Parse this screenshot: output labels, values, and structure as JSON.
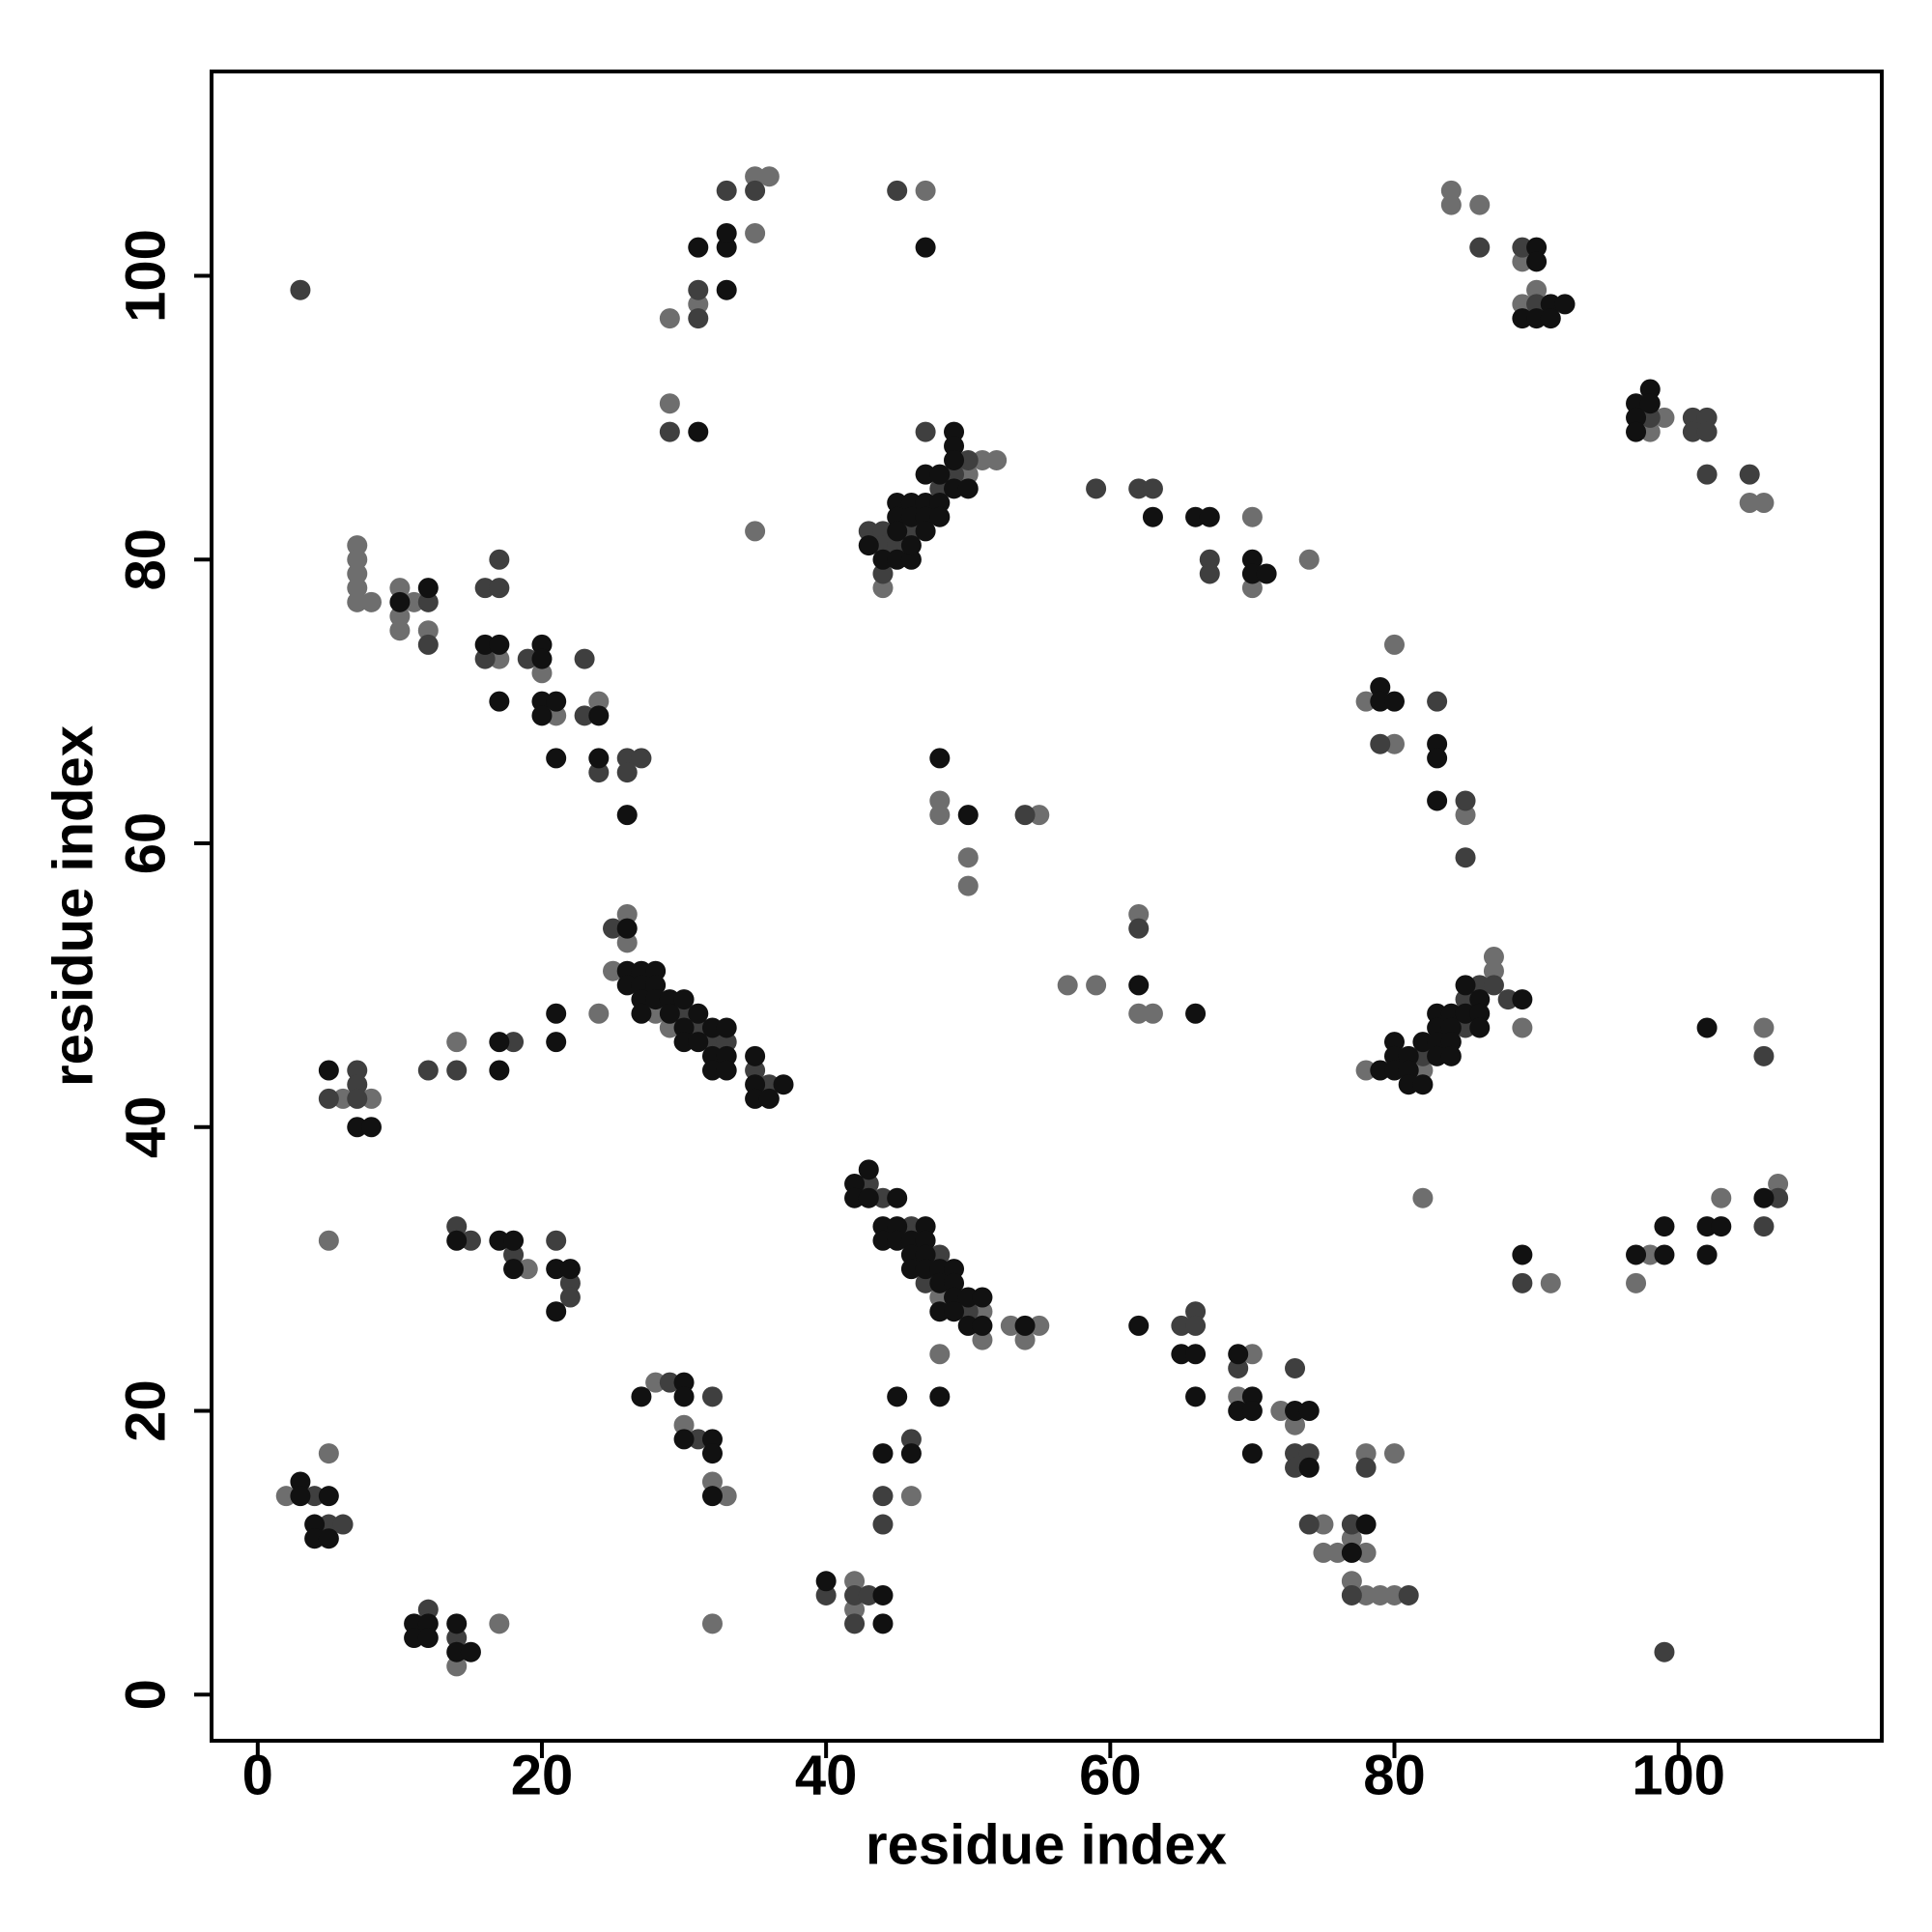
{
  "chart_data": {
    "type": "scatter",
    "x_label": "residue index",
    "y_label": "residue index",
    "xlim": [
      -3.25,
      114.3
    ],
    "ylim": [
      -3.25,
      114.4
    ],
    "xticks": [
      0,
      20,
      40,
      60,
      80,
      100
    ],
    "yticks": [
      0,
      20,
      40,
      60,
      80,
      100
    ],
    "series": [
      {
        "color": "#6e6e6e",
        "x": [
          29,
          29,
          31,
          35,
          35,
          36,
          35,
          47,
          84,
          84,
          86,
          89,
          89,
          90,
          98,
          99,
          105,
          106,
          44,
          50,
          51,
          52,
          70,
          70,
          74,
          7,
          7,
          7,
          7,
          7,
          8,
          10,
          10,
          10,
          11,
          12,
          17,
          20,
          21,
          24,
          48,
          48,
          50,
          50,
          55,
          78,
          80,
          80,
          85,
          26,
          26,
          25,
          24,
          28,
          29,
          6,
          8,
          14,
          57,
          59,
          62,
          62,
          63,
          78,
          82,
          87,
          87,
          89,
          106,
          5,
          19,
          48,
          51,
          51,
          53,
          54,
          55,
          48,
          69,
          70,
          72,
          73,
          75,
          75,
          76,
          77,
          77,
          78,
          78,
          78,
          79,
          80,
          80,
          28,
          30,
          32,
          33,
          32,
          46,
          42,
          42,
          2,
          5,
          14,
          17,
          82,
          91,
          97,
          98,
          103,
          107
        ],
        "values": [
          97,
          91,
          98,
          103,
          107,
          107,
          82,
          106,
          106,
          105,
          105,
          101,
          98,
          99,
          89,
          90,
          84,
          84,
          78,
          86,
          87,
          87,
          83,
          78,
          80,
          81,
          80,
          79,
          78,
          77,
          77,
          78,
          76,
          75,
          77,
          75,
          73,
          72,
          69,
          70,
          63,
          62,
          59,
          57,
          62,
          70,
          74,
          67,
          62,
          55,
          53,
          51,
          48,
          48,
          47,
          42,
          42,
          46,
          50,
          50,
          55,
          48,
          48,
          44,
          44,
          52,
          51,
          47,
          47,
          32,
          30,
          28,
          27,
          25,
          26,
          25,
          26,
          24,
          21,
          24,
          20,
          19,
          12,
          10,
          10,
          11,
          8,
          17,
          10,
          7,
          7,
          17,
          7,
          22,
          19,
          15,
          14,
          5,
          14,
          8,
          6,
          14,
          17,
          2,
          5,
          35,
          29,
          29,
          31,
          35,
          36
        ]
      },
      {
        "color": "#3f3f3f",
        "x": [
          3,
          29,
          31,
          31,
          33,
          35,
          45,
          86,
          89,
          90,
          98,
          101,
          101,
          102,
          102,
          102,
          105,
          43,
          44,
          44,
          44,
          45,
          46,
          47,
          48,
          49,
          50,
          59,
          62,
          63,
          67,
          67,
          12,
          12,
          16,
          16,
          17,
          17,
          19,
          23,
          23,
          24,
          26,
          26,
          27,
          54,
          79,
          83,
          85,
          85,
          25,
          30,
          31,
          32,
          33,
          35,
          36,
          5,
          7,
          7,
          7,
          12,
          14,
          18,
          62,
          82,
          85,
          85,
          86,
          87,
          88,
          106,
          14,
          15,
          18,
          21,
          22,
          22,
          43,
          44,
          46,
          47,
          48,
          50,
          65,
          66,
          66,
          69,
          73,
          73,
          73,
          74,
          74,
          77,
          77,
          78,
          81,
          29,
          31,
          32,
          46,
          44,
          44,
          40,
          42,
          42,
          43,
          4,
          5,
          6,
          12,
          14,
          99,
          89,
          106,
          107
        ],
        "values": [
          99,
          89,
          97,
          99,
          106,
          106,
          106,
          102,
          102,
          98,
          90,
          90,
          89,
          90,
          89,
          86,
          86,
          82,
          82,
          81,
          79,
          81,
          82,
          89,
          85,
          86,
          87,
          85,
          85,
          85,
          80,
          79,
          77,
          74,
          78,
          73,
          80,
          78,
          73,
          73,
          69,
          65,
          66,
          65,
          66,
          62,
          67,
          70,
          63,
          59,
          54,
          48,
          47,
          46,
          46,
          44,
          43,
          42,
          44,
          43,
          42,
          44,
          44,
          46,
          54,
          45,
          49,
          47,
          50,
          50,
          49,
          45,
          33,
          32,
          31,
          32,
          29,
          28,
          36,
          35,
          33,
          29,
          31,
          27,
          26,
          27,
          26,
          23,
          23,
          17,
          16,
          17,
          12,
          12,
          7,
          16,
          7,
          22,
          18,
          21,
          18,
          14,
          12,
          7,
          7,
          5,
          7,
          14,
          12,
          12,
          6,
          4,
          3,
          29,
          33,
          35
        ]
      },
      {
        "color": "#111111",
        "x": [
          31,
          33,
          33,
          33,
          47,
          31,
          89,
          90,
          90,
          90,
          91,
          91,
          92,
          97,
          97,
          97,
          98,
          98,
          43,
          44,
          45,
          45,
          45,
          45,
          46,
          46,
          46,
          47,
          47,
          47,
          48,
          48,
          48,
          49,
          49,
          49,
          49,
          50,
          46,
          47,
          63,
          66,
          67,
          70,
          70,
          71,
          10,
          12,
          16,
          17,
          17,
          20,
          20,
          20,
          20,
          21,
          21,
          24,
          24,
          26,
          48,
          50,
          79,
          79,
          80,
          83,
          83,
          83,
          26,
          26,
          26,
          27,
          27,
          27,
          27,
          28,
          28,
          28,
          29,
          29,
          30,
          30,
          30,
          31,
          31,
          32,
          32,
          32,
          33,
          33,
          33,
          35,
          35,
          35,
          36,
          37,
          5,
          7,
          8,
          17,
          17,
          21,
          21,
          62,
          66,
          79,
          80,
          80,
          80,
          81,
          81,
          81,
          82,
          82,
          83,
          83,
          83,
          83,
          84,
          84,
          84,
          84,
          85,
          85,
          86,
          86,
          86,
          89,
          102,
          14,
          17,
          18,
          18,
          21,
          21,
          22,
          42,
          42,
          43,
          43,
          44,
          44,
          45,
          45,
          45,
          46,
          46,
          46,
          47,
          47,
          47,
          47,
          48,
          48,
          48,
          49,
          49,
          49,
          49,
          50,
          50,
          51,
          51,
          54,
          62,
          65,
          66,
          66,
          69,
          69,
          70,
          70,
          70,
          73,
          74,
          74,
          77,
          78,
          27,
          30,
          30,
          30,
          32,
          32,
          32,
          45,
          48,
          44,
          46,
          40,
          44,
          44,
          3,
          3,
          4,
          4,
          5,
          5,
          11,
          11,
          12,
          12,
          14,
          14,
          15,
          89,
          97,
          99,
          99,
          102,
          102,
          103,
          106
        ],
        "values": [
          102,
          99,
          102,
          103,
          102,
          89,
          97,
          102,
          101,
          97,
          98,
          97,
          98,
          91,
          90,
          89,
          92,
          91,
          81,
          80,
          84,
          83,
          82,
          80,
          84,
          83,
          80,
          84,
          83,
          86,
          86,
          84,
          83,
          89,
          88,
          87,
          85,
          85,
          81,
          82,
          83,
          83,
          83,
          80,
          79,
          79,
          77,
          78,
          74,
          74,
          70,
          74,
          73,
          70,
          69,
          70,
          66,
          69,
          66,
          62,
          66,
          62,
          71,
          70,
          70,
          67,
          66,
          63,
          54,
          51,
          50,
          51,
          50,
          49,
          48,
          51,
          50,
          49,
          49,
          48,
          49,
          47,
          46,
          48,
          46,
          47,
          45,
          44,
          47,
          45,
          44,
          45,
          43,
          42,
          42,
          43,
          44,
          40,
          40,
          46,
          44,
          48,
          46,
          50,
          48,
          44,
          46,
          45,
          44,
          45,
          44,
          43,
          46,
          43,
          48,
          47,
          46,
          45,
          48,
          47,
          46,
          45,
          50,
          48,
          49,
          48,
          47,
          49,
          47,
          32,
          32,
          32,
          30,
          30,
          27,
          30,
          36,
          35,
          37,
          35,
          33,
          32,
          35,
          33,
          32,
          32,
          31,
          30,
          33,
          32,
          31,
          30,
          30,
          29,
          27,
          30,
          29,
          28,
          27,
          28,
          26,
          28,
          26,
          26,
          26,
          24,
          24,
          21,
          24,
          20,
          21,
          20,
          17,
          20,
          20,
          16,
          10,
          12,
          21,
          22,
          21,
          18,
          18,
          17,
          14,
          21,
          21,
          17,
          17,
          8,
          7,
          5,
          15,
          14,
          12,
          11,
          14,
          11,
          5,
          4,
          5,
          4,
          5,
          3,
          3,
          31,
          31,
          33,
          31,
          33,
          31,
          33,
          35
        ]
      }
    ]
  }
}
